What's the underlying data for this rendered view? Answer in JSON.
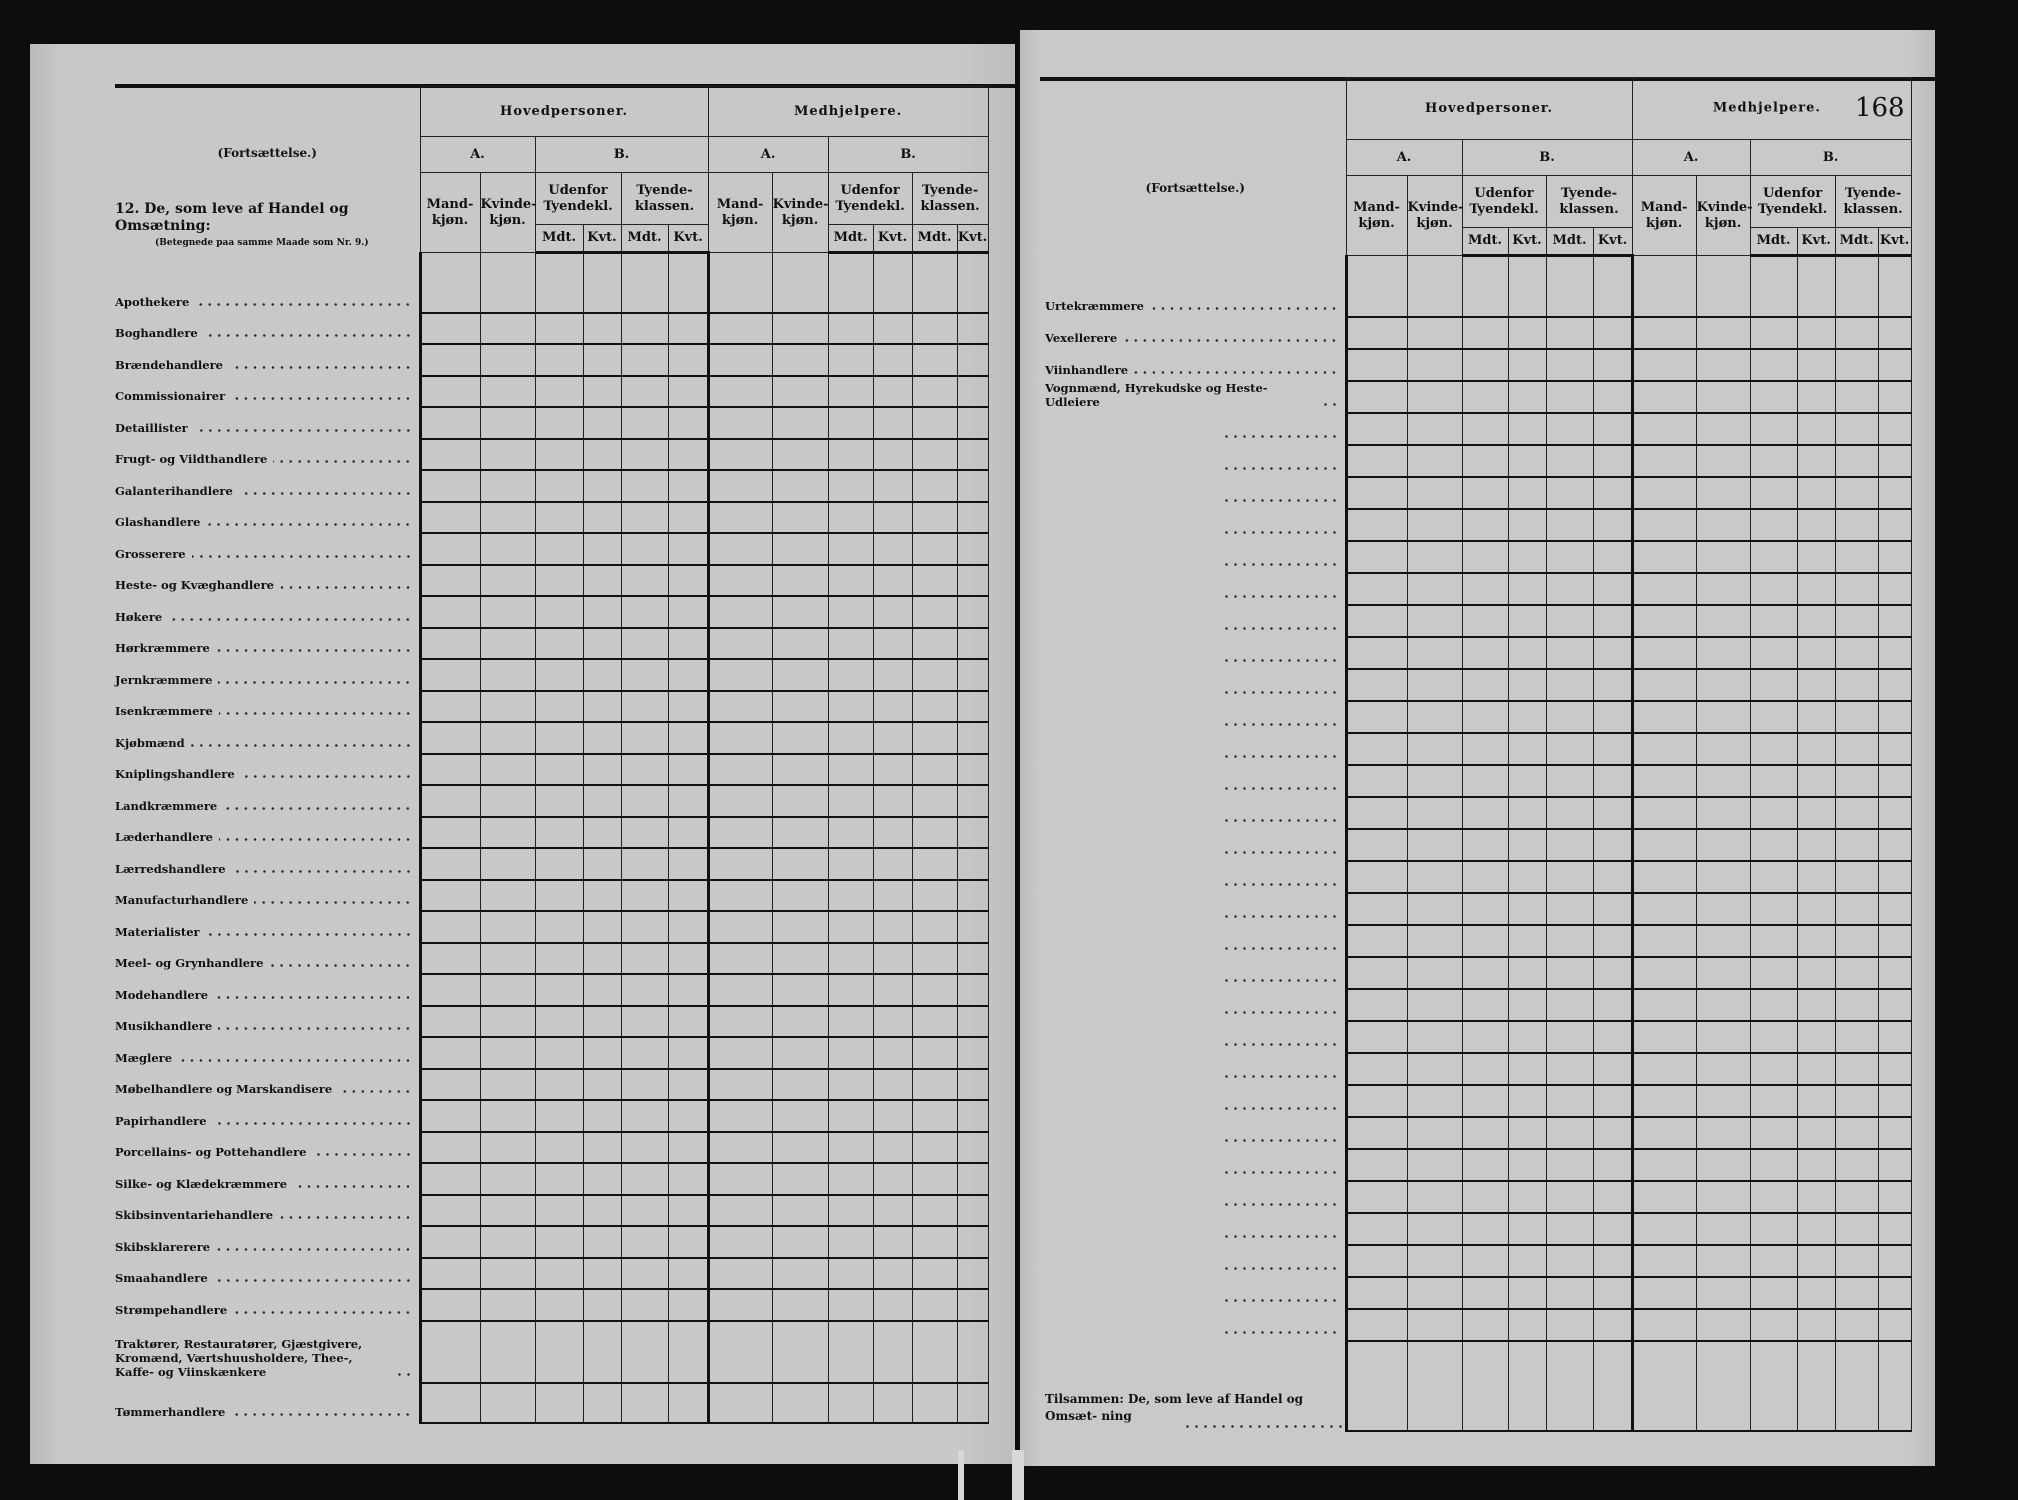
{
  "left_page": {
    "continuation": "(Fortsættelse.)",
    "section_heading": "12.  De, som leve af Handel og Omsætning:",
    "section_note": "(Betegnede paa samme Maade som Nr. 9.)",
    "rows": [
      "Apothekere",
      "Boghandlere",
      "Brændehandlere",
      "Commissionairer",
      "Detaillister",
      "Frugt- og Vildthandlere",
      "Galanterihandlere",
      "Glashandlere",
      "Grosserere",
      "Heste- og Kvæghandlere",
      "Høkere",
      "Hørkræmmere",
      "Jernkræmmere",
      "Isenkræmmere",
      "Kjøbmænd",
      "Kniplingshandlere",
      "Landkræmmere",
      "Læderhandlere",
      "Lærredshandlere",
      "Manufacturhandlere",
      "Materialister",
      "Meel- og Grynhandlere",
      "Modehandlere",
      "Musikhandlere",
      "Mæglere",
      "Møbelhandlere og Marskandisere",
      "Papirhandlere",
      "Porcellains- og Pottehandlere",
      "Silke- og Klædekræmmere",
      "Skibsinventariehandlere",
      "Skibsklarerere",
      "Smaahandlere",
      "Strømpehandlere",
      "Traktører, Restauratører, Gjæstgivere, Kromænd, Værtshuusholdere, Thee-, Kaffe- og Viinskænkere",
      "Tømmerhandlere"
    ]
  },
  "right_page": {
    "page_number": "168",
    "continuation": "(Fortsættelse.)",
    "rows": [
      "Urtekræmmere",
      "Vexellerere",
      "Viinhandlere",
      "Vognmænd, Hyrekudske og Heste-Udleiere"
    ],
    "blank_rows": 29,
    "total_label_1": "Tilsammen:",
    "total_label_2": "De, som leve af Handel og Omsæt-",
    "total_label_3": "ning"
  },
  "headers": {
    "group_main": "Hovedpersoner.",
    "group_helpers": "Medhjelpere.",
    "a": "A.",
    "b": "B.",
    "male": "Mand-kjøn.",
    "female": "Kvinde-kjøn.",
    "outside_servant": "Udenfor Tyendekl.",
    "servant_class": "Tyende-klassen.",
    "mdt": "Mdt.",
    "kvt": "Kvt."
  },
  "colors": {
    "paper": "#c6c6c6",
    "ink": "#111111",
    "background": "#0d0d0d"
  }
}
